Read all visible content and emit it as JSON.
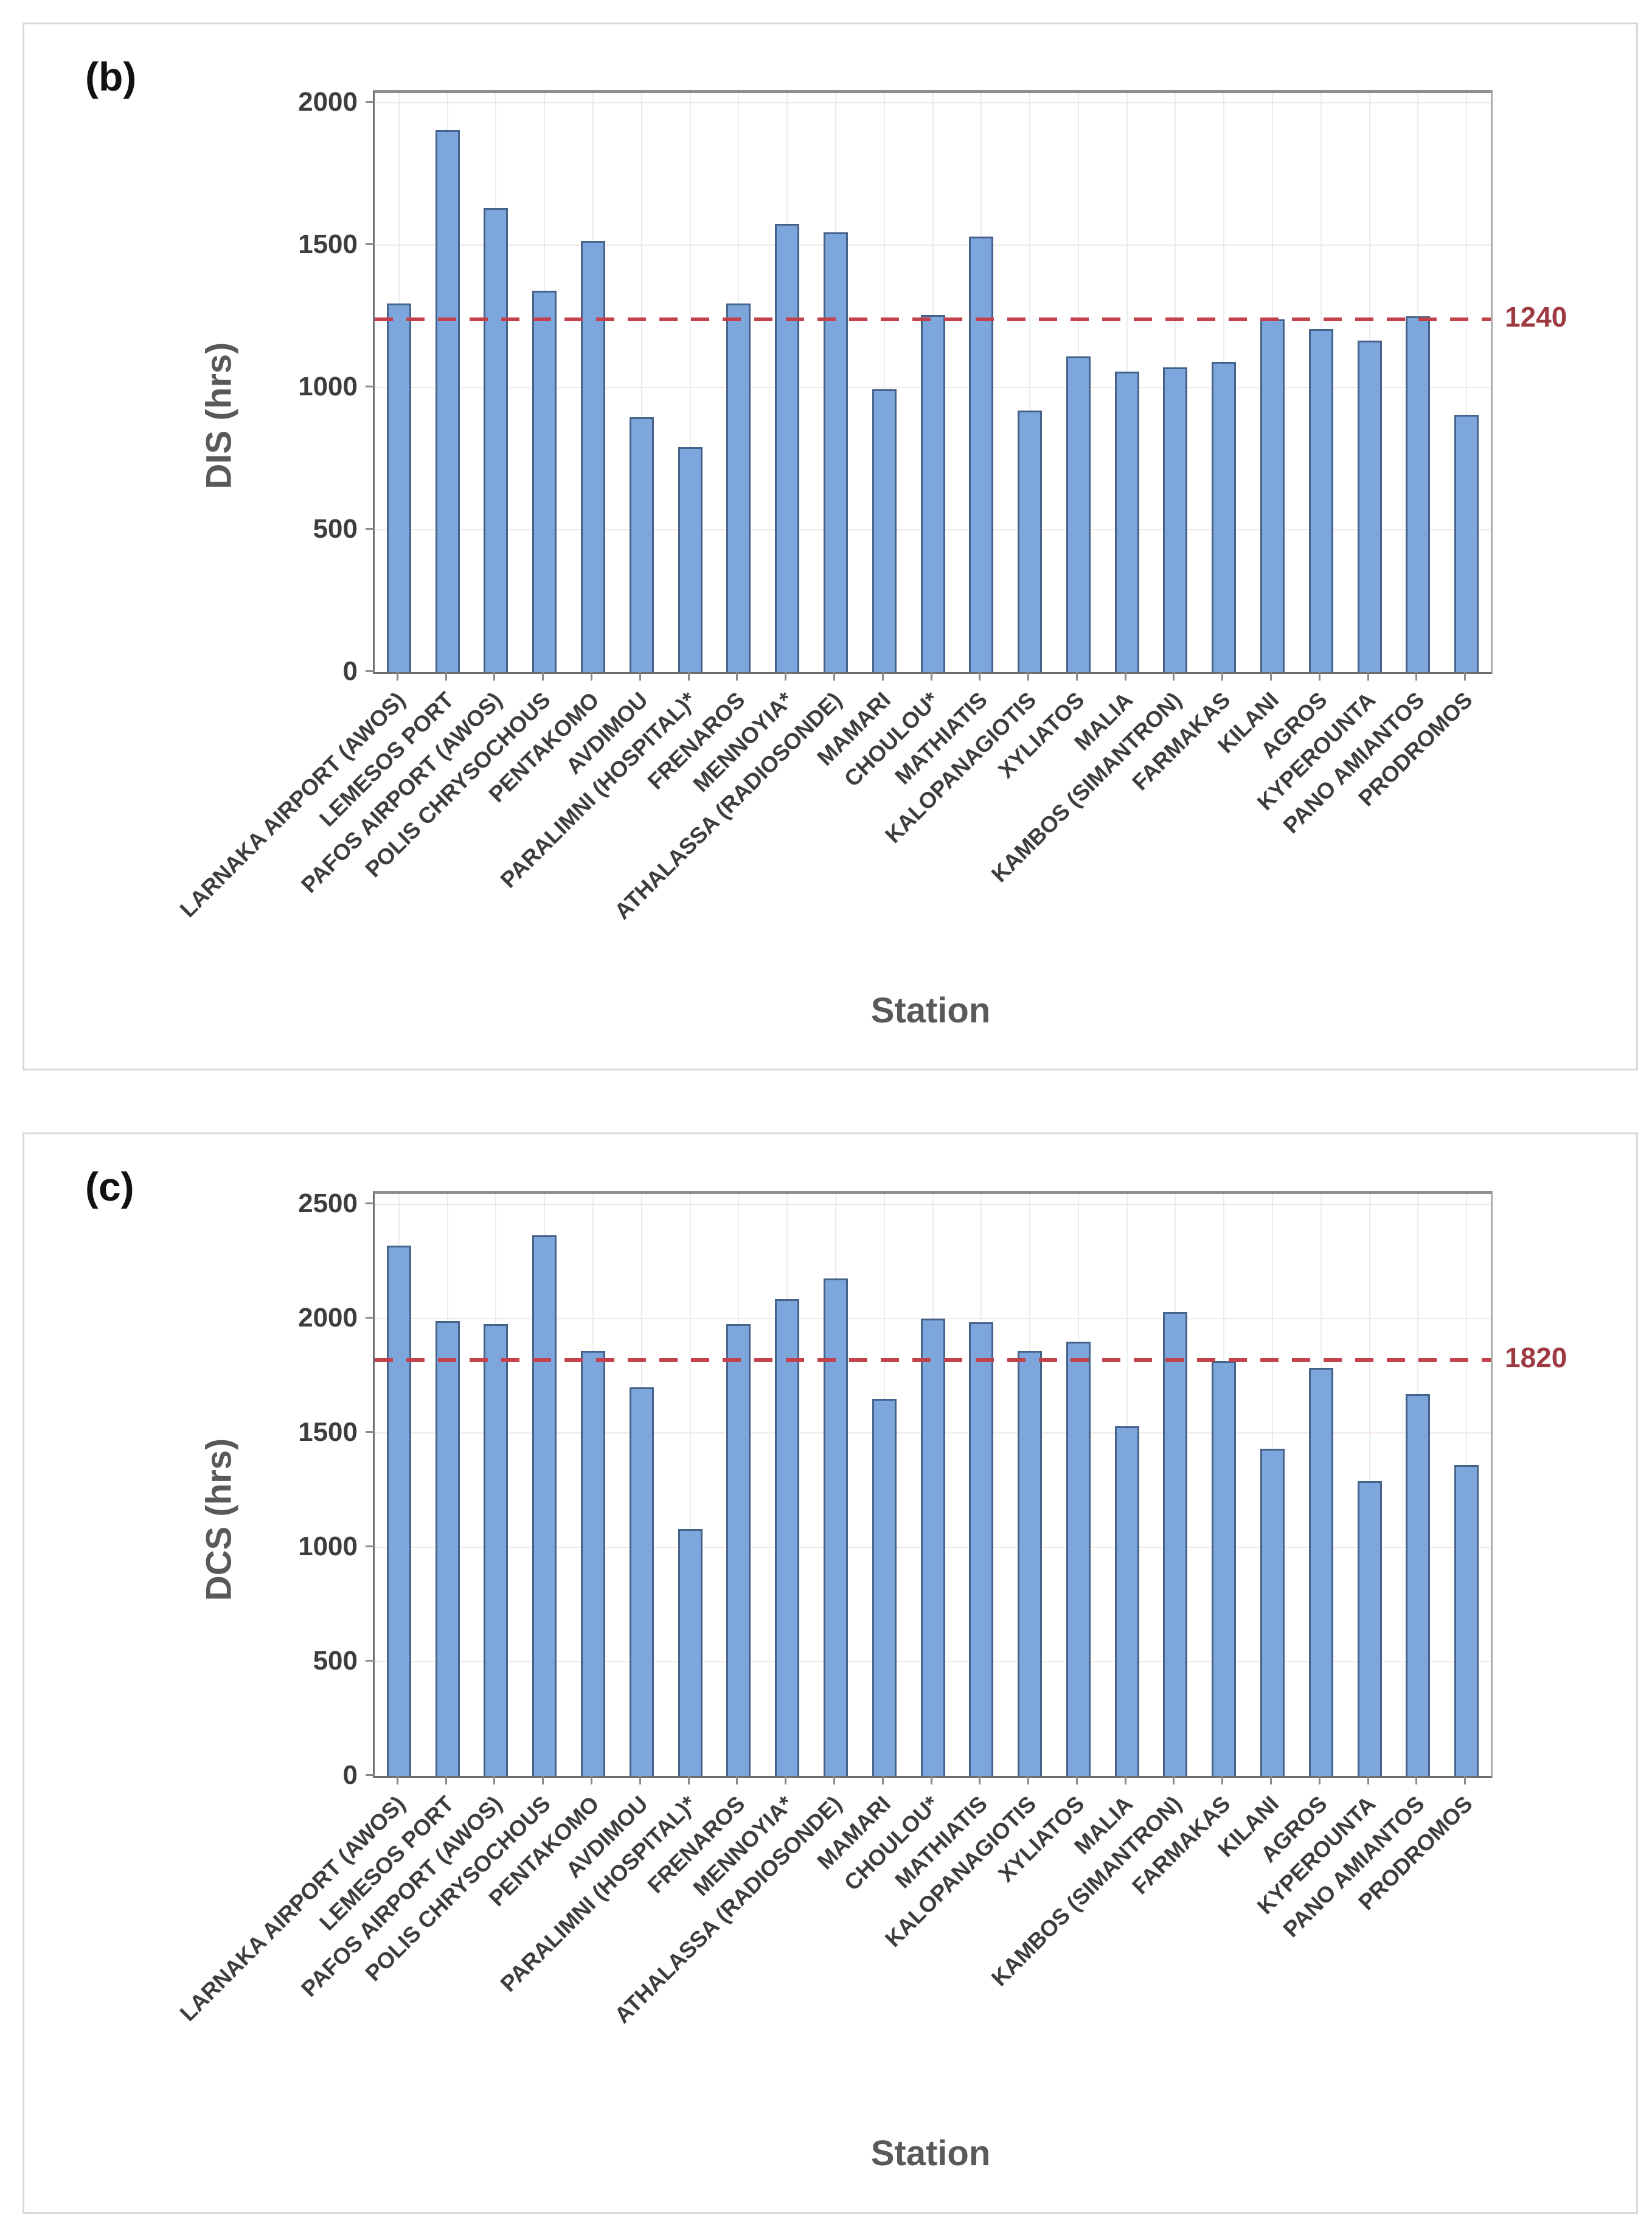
{
  "accent_colors": {
    "bar_fill": "#7da7dc",
    "bar_border": "#45628a",
    "reference_line": "#c2414a",
    "reference_label": "#9e3a42"
  },
  "chart_data": [
    {
      "type": "bar",
      "panel_label": "(b)",
      "ylabel": "DIS (hrs)",
      "xlabel": "Station",
      "reference_line": {
        "value": 1240,
        "label": "1240"
      },
      "ylim": [
        0,
        2035
      ],
      "yticks": [
        0,
        500,
        1000,
        1500,
        2000
      ],
      "grid": true,
      "categories": [
        "LARNAKA AIRPORT (AWOS)",
        "LEMESOS PORT",
        "PAFOS AIRPORT (AWOS)",
        "POLIS CHRYSOCHOUS",
        "PENTAKOMO",
        "AVDIMOU",
        "PARALIMNI (HOSPITAL)*",
        "FRENAROS",
        "MENNOYIA*",
        "ATHALASSA (RADIOSONDE)",
        "MAMARI",
        "CHOULOU*",
        "MATHIATIS",
        "KALOPANAGIOTIS",
        "XYLIATOS",
        "MALIA",
        "KAMBOS (SIMANTRON)",
        "FARMAKAS",
        "KILANI",
        "AGROS",
        "KYPEROUNTA",
        "PANO AMIANTOS",
        "PRODROMOS"
      ],
      "values": [
        1295,
        1905,
        1630,
        1340,
        1515,
        895,
        790,
        1295,
        1575,
        1545,
        995,
        1255,
        1530,
        920,
        1110,
        1055,
        1070,
        1090,
        1240,
        1205,
        1165,
        1250,
        905
      ]
    },
    {
      "type": "bar",
      "panel_label": "(c)",
      "ylabel": "DCS (hrs)",
      "xlabel": "Station",
      "reference_line": {
        "value": 1820,
        "label": "1820"
      },
      "ylim": [
        0,
        2545
      ],
      "yticks": [
        0,
        500,
        1000,
        1500,
        2000,
        2500
      ],
      "grid": true,
      "categories": [
        "LARNAKA AIRPORT (AWOS)",
        "LEMESOS PORT",
        "PAFOS AIRPORT (AWOS)",
        "POLIS CHRYSOCHOUS",
        "PENTAKOMO",
        "AVDIMOU",
        "PARALIMNI (HOSPITAL)*",
        "FRENAROS",
        "MENNOYIA*",
        "ATHALASSA (RADIOSONDE)",
        "MAMARI",
        "CHOULOU*",
        "MATHIATIS",
        "KALOPANAGIOTIS",
        "XYLIATOS",
        "MALIA",
        "KAMBOS (SIMANTRON)",
        "FARMAKAS",
        "KILANI",
        "AGROS",
        "KYPEROUNTA",
        "PANO AMIANTOS",
        "PRODROMOS"
      ],
      "values": [
        2320,
        1990,
        1975,
        2365,
        1860,
        1700,
        1080,
        1975,
        2085,
        2175,
        1650,
        2000,
        1985,
        1860,
        1900,
        1530,
        2030,
        1815,
        1430,
        1785,
        1290,
        1670,
        1360
      ]
    }
  ]
}
